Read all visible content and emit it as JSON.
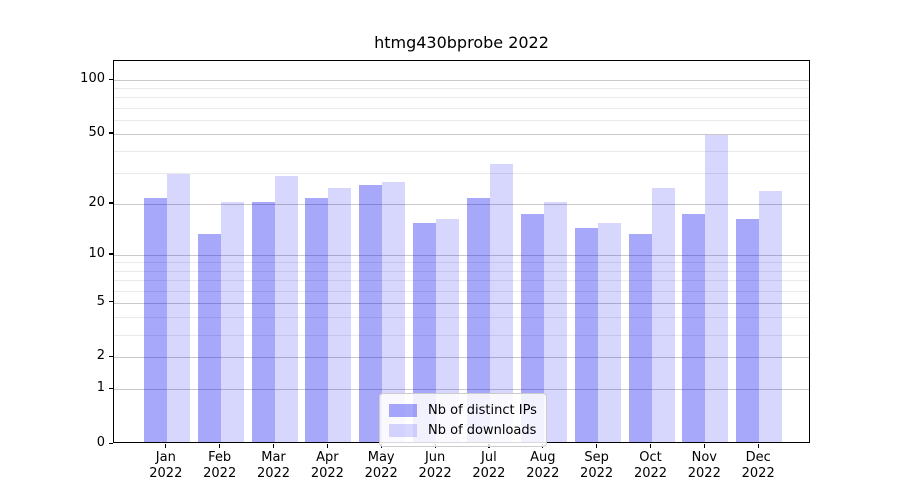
{
  "chart_data": {
    "type": "bar",
    "title": "htmg430bprobe 2022",
    "categories": [
      {
        "month": "Jan",
        "year": "2022"
      },
      {
        "month": "Feb",
        "year": "2022"
      },
      {
        "month": "Mar",
        "year": "2022"
      },
      {
        "month": "Apr",
        "year": "2022"
      },
      {
        "month": "May",
        "year": "2022"
      },
      {
        "month": "Jun",
        "year": "2022"
      },
      {
        "month": "Jul",
        "year": "2022"
      },
      {
        "month": "Aug",
        "year": "2022"
      },
      {
        "month": "Sep",
        "year": "2022"
      },
      {
        "month": "Oct",
        "year": "2022"
      },
      {
        "month": "Nov",
        "year": "2022"
      },
      {
        "month": "Dec",
        "year": "2022"
      }
    ],
    "series": [
      {
        "name": "Nb of distinct IPs",
        "color": "#0000F057",
        "values": [
          21,
          13,
          20,
          21,
          25,
          15,
          21,
          17,
          14,
          13,
          17,
          16
        ]
      },
      {
        "name": "Nb of downloads",
        "color": "#0000F028",
        "values": [
          29,
          20,
          28,
          24,
          26,
          16,
          33,
          20,
          15,
          24,
          48,
          23
        ]
      }
    ],
    "yscale": "log1p",
    "ylim": [
      0,
      127.5
    ],
    "y_tick_labels": [
      100,
      50,
      20,
      10,
      5,
      2,
      1,
      0
    ],
    "y_minor_gridlines": [
      90,
      80,
      70,
      60,
      40,
      30,
      9,
      8,
      7,
      6,
      4,
      3
    ],
    "grid": true,
    "legend_position": "lower center",
    "colors": {
      "grid_major": "#c9c9c9",
      "grid_minor": "#eaeaea",
      "axis": "#000000",
      "text": "#000000"
    }
  }
}
